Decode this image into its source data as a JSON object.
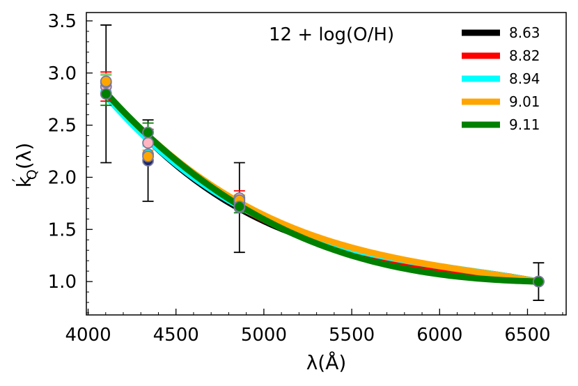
{
  "chart_data": {
    "type": "line",
    "xlabel": "λ(Å)",
    "ylabel_main": "k",
    "ylabel_prime": "′",
    "ylabel_sub": "Q",
    "ylabel_tail": "(λ)",
    "legend_title": "12 + log(O/H)",
    "legend_position": "top-right",
    "xlim": [
      3990,
      6720
    ],
    "ylim": [
      0.68,
      3.58
    ],
    "xticks": [
      4000,
      4500,
      5000,
      5500,
      6000,
      6500
    ],
    "xtick_labels": [
      "4000",
      "4500",
      "5000",
      "5500",
      "6000",
      "6500"
    ],
    "yticks": [
      1.0,
      1.5,
      2.0,
      2.5,
      3.0,
      3.5
    ],
    "ytick_labels": [
      "1.0",
      "1.5",
      "2.0",
      "2.5",
      "3.0",
      "3.5"
    ],
    "grid": false,
    "series": [
      {
        "name": "8.63",
        "color": "#000000",
        "point_color": "#1f2a6b",
        "curve_k410": 2.8,
        "curve_k434": 2.36,
        "curve_k486": 1.7,
        "x": [
          4102,
          4341,
          4861,
          6563
        ],
        "y": [
          2.8,
          2.16,
          1.71,
          1.0
        ],
        "yerr": [
          0.66,
          0.39,
          0.43,
          0.18
        ]
      },
      {
        "name": "8.82",
        "color": "#ff0000",
        "point_color": "#ffb6c1",
        "curve_k410": 2.8,
        "curve_k434": 2.38,
        "curve_k486": 1.72,
        "x": [
          4102,
          4341,
          4861,
          6563
        ],
        "y": [
          2.87,
          2.33,
          1.8,
          1.0
        ],
        "yerr": [
          0.14,
          0.13,
          0.07,
          0.0
        ]
      },
      {
        "name": "8.94",
        "color": "#00ffff",
        "point_color": "#00ffff",
        "curve_k410": 2.78,
        "curve_k434": 2.36,
        "curve_k486": 1.72,
        "x": [
          4102,
          4341,
          4861,
          6563
        ],
        "y": [
          2.91,
          2.22,
          1.76,
          1.0
        ],
        "yerr": [
          0.08,
          0.08,
          0.06,
          0.0
        ]
      },
      {
        "name": "9.01",
        "color": "#ffa500",
        "point_color": "#ffa500",
        "curve_k410": 2.81,
        "curve_k434": 2.4,
        "curve_k486": 1.76,
        "x": [
          4102,
          4341,
          4861,
          6563
        ],
        "y": [
          2.92,
          2.2,
          1.78,
          1.0
        ],
        "yerr": [
          0.06,
          0.06,
          0.05,
          0.0
        ]
      },
      {
        "name": "9.11",
        "color": "#008000",
        "point_color": "#008000",
        "curve_k410": 2.81,
        "curve_k434": 2.4,
        "curve_k486": 1.73,
        "x": [
          4102,
          4341,
          4861,
          6563
        ],
        "y": [
          2.8,
          2.43,
          1.72,
          1.0
        ],
        "yerr": [
          0.11,
          0.09,
          0.06,
          0.0
        ]
      }
    ]
  }
}
